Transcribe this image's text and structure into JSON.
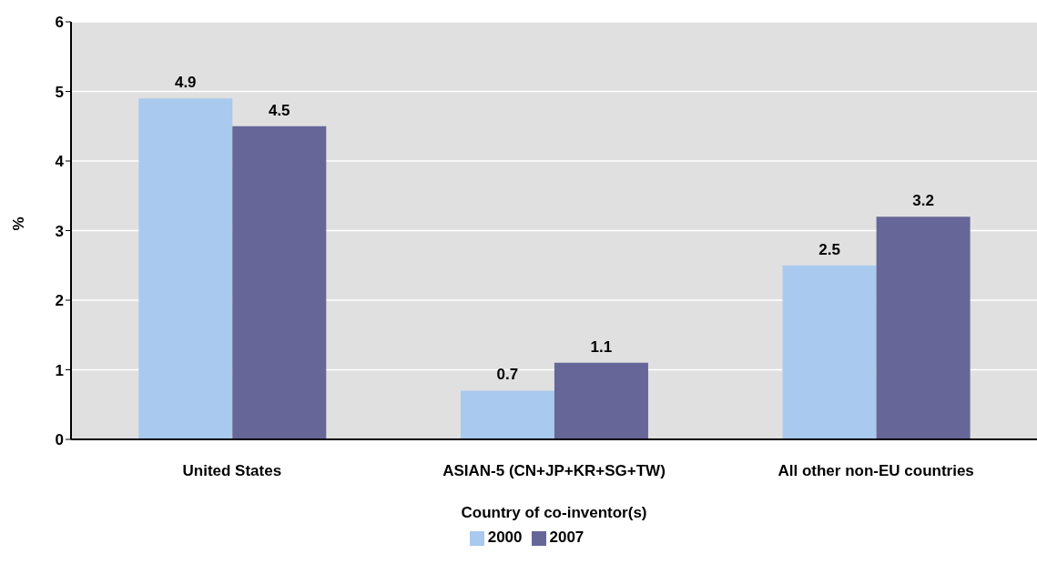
{
  "chart_data": {
    "type": "bar",
    "xlabel": "Country of co-inventor(s)",
    "ylabel": "%",
    "categories": [
      "United States",
      "ASIAN-5 (CN+JP+KR+SG+TW)",
      "All other non-EU countries"
    ],
    "series": [
      {
        "name": "2000",
        "color": "#a9c9ee",
        "values": [
          4.9,
          0.7,
          2.5
        ]
      },
      {
        "name": "2007",
        "color": "#666699",
        "values": [
          4.5,
          1.1,
          3.2
        ]
      }
    ],
    "ylim": [
      0,
      6
    ],
    "yticks": [
      0,
      1,
      2,
      3,
      4,
      5,
      6
    ],
    "grid": "y",
    "legend": "bottom",
    "data_labels": true
  }
}
